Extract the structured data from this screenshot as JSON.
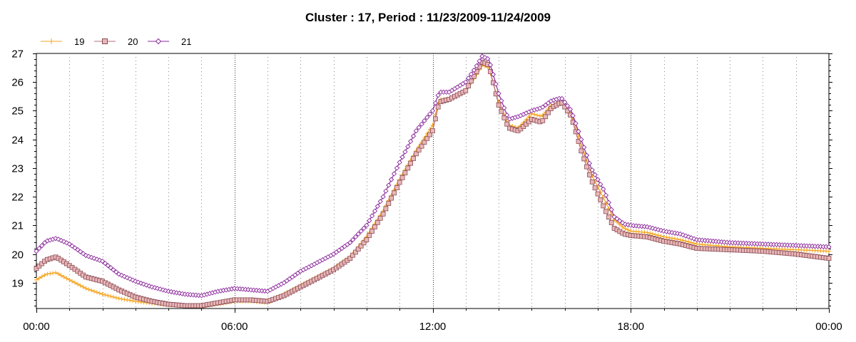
{
  "chart_data": {
    "type": "line",
    "title": "Cluster : 17, Period : 11/23/2009-11/24/2009",
    "xlabel": "",
    "ylabel": "",
    "x_unit": "hours",
    "x_ticks": [
      {
        "value": 0,
        "label": "00:00"
      },
      {
        "value": 6,
        "label": "06:00"
      },
      {
        "value": 12,
        "label": "12:00"
      },
      {
        "value": 18,
        "label": "18:00"
      },
      {
        "value": 24,
        "label": "00:00"
      }
    ],
    "xlim": [
      0,
      24
    ],
    "ylim": [
      18.1,
      27
    ],
    "y_ticks": [
      19,
      20,
      21,
      22,
      23,
      24,
      25,
      26,
      27
    ],
    "grid": {
      "vertical_major": "dotted",
      "vertical_minor": "dotted",
      "horizontal": false
    },
    "legend": {
      "position": "top-left"
    },
    "series": [
      {
        "name": "19",
        "color": "#f5a623",
        "marker": "plus",
        "points": [
          [
            0,
            19.1
          ],
          [
            0.3,
            19.3
          ],
          [
            0.6,
            19.35
          ],
          [
            1,
            19.1
          ],
          [
            1.5,
            18.8
          ],
          [
            2,
            18.6
          ],
          [
            2.5,
            18.45
          ],
          [
            3,
            18.35
          ],
          [
            3.5,
            18.28
          ],
          [
            4,
            18.22
          ],
          [
            4.5,
            18.2
          ],
          [
            5,
            18.18
          ],
          [
            5.5,
            18.25
          ],
          [
            6,
            18.35
          ],
          [
            6.5,
            18.35
          ],
          [
            7,
            18.3
          ],
          [
            7.5,
            18.6
          ],
          [
            8,
            18.9
          ],
          [
            8.5,
            19.2
          ],
          [
            9,
            19.5
          ],
          [
            9.5,
            19.9
          ],
          [
            10,
            20.6
          ],
          [
            10.5,
            21.5
          ],
          [
            11,
            22.6
          ],
          [
            11.5,
            23.6
          ],
          [
            12,
            24.5
          ],
          [
            12.2,
            25.4
          ],
          [
            12.5,
            25.4
          ],
          [
            13,
            25.7
          ],
          [
            13.3,
            26.2
          ],
          [
            13.5,
            26.6
          ],
          [
            13.7,
            26.5
          ],
          [
            14,
            25.3
          ],
          [
            14.3,
            24.5
          ],
          [
            14.6,
            24.4
          ],
          [
            15,
            24.9
          ],
          [
            15.3,
            24.8
          ],
          [
            15.6,
            25.2
          ],
          [
            15.9,
            25.3
          ],
          [
            16.2,
            24.9
          ],
          [
            16.5,
            23.8
          ],
          [
            16.8,
            22.8
          ],
          [
            17.2,
            21.9
          ],
          [
            17.5,
            21.2
          ],
          [
            17.8,
            20.9
          ],
          [
            18,
            20.8
          ],
          [
            18.5,
            20.75
          ],
          [
            19,
            20.6
          ],
          [
            19.5,
            20.5
          ],
          [
            20,
            20.35
          ],
          [
            21,
            20.25
          ],
          [
            22,
            20.2
          ],
          [
            23,
            20.15
          ],
          [
            24,
            20.1
          ]
        ]
      },
      {
        "name": "20",
        "color": "#b06b78",
        "marker": "square",
        "points": [
          [
            0,
            19.5
          ],
          [
            0.3,
            19.8
          ],
          [
            0.6,
            19.9
          ],
          [
            1,
            19.6
          ],
          [
            1.5,
            19.2
          ],
          [
            2,
            19.05
          ],
          [
            2.5,
            18.75
          ],
          [
            3,
            18.5
          ],
          [
            3.5,
            18.35
          ],
          [
            4,
            18.25
          ],
          [
            4.5,
            18.2
          ],
          [
            5,
            18.2
          ],
          [
            5.5,
            18.3
          ],
          [
            6,
            18.4
          ],
          [
            6.5,
            18.4
          ],
          [
            7,
            18.35
          ],
          [
            7.5,
            18.55
          ],
          [
            8,
            18.85
          ],
          [
            8.5,
            19.15
          ],
          [
            9,
            19.45
          ],
          [
            9.5,
            19.85
          ],
          [
            10,
            20.5
          ],
          [
            10.5,
            21.4
          ],
          [
            11,
            22.5
          ],
          [
            11.5,
            23.5
          ],
          [
            12,
            24.3
          ],
          [
            12.2,
            25.3
          ],
          [
            12.5,
            25.4
          ],
          [
            13,
            25.7
          ],
          [
            13.3,
            26.3
          ],
          [
            13.5,
            26.7
          ],
          [
            13.7,
            26.6
          ],
          [
            14,
            25.2
          ],
          [
            14.3,
            24.4
          ],
          [
            14.6,
            24.3
          ],
          [
            15,
            24.7
          ],
          [
            15.3,
            24.6
          ],
          [
            15.6,
            25.1
          ],
          [
            15.9,
            25.3
          ],
          [
            16.2,
            24.8
          ],
          [
            16.5,
            23.6
          ],
          [
            16.8,
            22.6
          ],
          [
            17.2,
            21.6
          ],
          [
            17.5,
            20.9
          ],
          [
            17.8,
            20.7
          ],
          [
            18,
            20.65
          ],
          [
            18.5,
            20.6
          ],
          [
            19,
            20.45
          ],
          [
            19.5,
            20.35
          ],
          [
            20,
            20.2
          ],
          [
            21,
            20.15
          ],
          [
            22,
            20.1
          ],
          [
            23,
            20.0
          ],
          [
            24,
            19.85
          ]
        ]
      },
      {
        "name": "21",
        "color": "#8b2a9b",
        "marker": "diamond",
        "points": [
          [
            0,
            20.1
          ],
          [
            0.3,
            20.45
          ],
          [
            0.6,
            20.55
          ],
          [
            1,
            20.35
          ],
          [
            1.5,
            19.95
          ],
          [
            2,
            19.75
          ],
          [
            2.5,
            19.3
          ],
          [
            3,
            19.05
          ],
          [
            3.5,
            18.85
          ],
          [
            4,
            18.7
          ],
          [
            4.5,
            18.6
          ],
          [
            5,
            18.55
          ],
          [
            5.5,
            18.7
          ],
          [
            6,
            18.8
          ],
          [
            6.5,
            18.75
          ],
          [
            7,
            18.7
          ],
          [
            7.5,
            19.0
          ],
          [
            8,
            19.4
          ],
          [
            8.5,
            19.7
          ],
          [
            9,
            20.0
          ],
          [
            9.5,
            20.4
          ],
          [
            10,
            21.0
          ],
          [
            10.5,
            22.0
          ],
          [
            11,
            23.2
          ],
          [
            11.5,
            24.3
          ],
          [
            12,
            25.0
          ],
          [
            12.2,
            25.65
          ],
          [
            12.5,
            25.65
          ],
          [
            13,
            26.0
          ],
          [
            13.3,
            26.5
          ],
          [
            13.5,
            26.9
          ],
          [
            13.7,
            26.8
          ],
          [
            14,
            25.6
          ],
          [
            14.3,
            24.7
          ],
          [
            14.6,
            24.8
          ],
          [
            15,
            25.0
          ],
          [
            15.3,
            25.1
          ],
          [
            15.6,
            25.35
          ],
          [
            15.9,
            25.45
          ],
          [
            16.2,
            25.0
          ],
          [
            16.5,
            24.0
          ],
          [
            16.8,
            23.0
          ],
          [
            17.2,
            22.2
          ],
          [
            17.5,
            21.3
          ],
          [
            17.8,
            21.05
          ],
          [
            18,
            21.0
          ],
          [
            18.5,
            20.95
          ],
          [
            19,
            20.8
          ],
          [
            19.5,
            20.7
          ],
          [
            20,
            20.5
          ],
          [
            21,
            20.4
          ],
          [
            22,
            20.35
          ],
          [
            23,
            20.3
          ],
          [
            24,
            20.25
          ]
        ]
      }
    ]
  }
}
